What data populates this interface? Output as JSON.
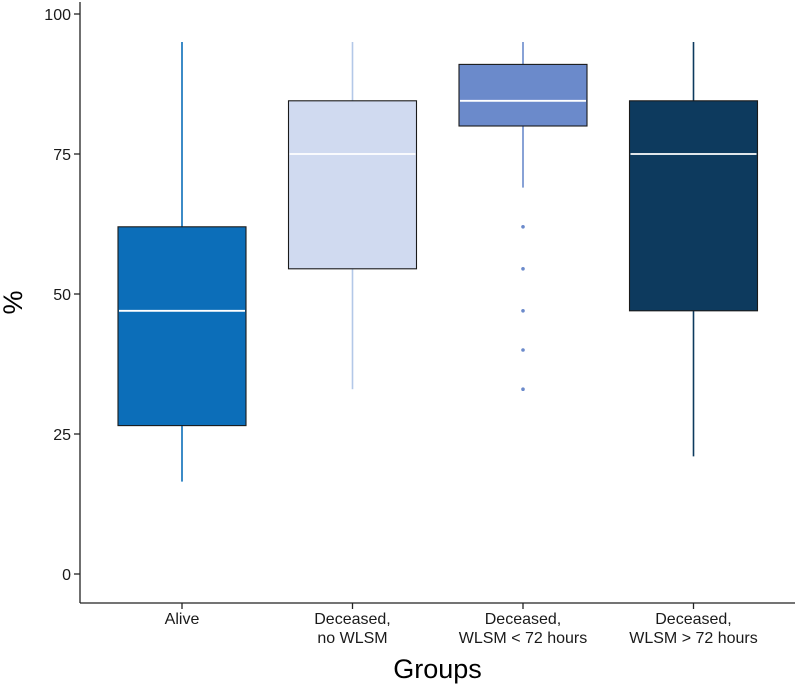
{
  "chart_data": {
    "type": "boxplot",
    "title": "",
    "xlabel": "Groups",
    "ylabel": "%",
    "ylim": [
      -5,
      102
    ],
    "yticks": [
      0,
      25,
      50,
      75,
      100
    ],
    "ytick_labels": [
      "0",
      "25",
      "50",
      "75",
      "100"
    ],
    "grid": false,
    "legend": "none",
    "categories": [
      [
        "Alive"
      ],
      [
        "Deceased,",
        "no WLSM"
      ],
      [
        "Deceased,",
        "WLSM < 72 hours"
      ],
      [
        "Deceased,",
        "WLSM > 72 hours"
      ]
    ],
    "boxes": [
      {
        "name": "Alive",
        "whisker_low": 16.5,
        "q1": 26.5,
        "median": 47,
        "q3": 62,
        "whisker_high": 95,
        "outliers": [],
        "fill": "#0c6eb9",
        "median_color": "#ffffff",
        "whisker_color": "#0c6eb9"
      },
      {
        "name": "Deceased, no WLSM",
        "whisker_low": 33,
        "q1": 54.5,
        "median": 75,
        "q3": 84.5,
        "whisker_high": 95,
        "outliers": [],
        "fill": "#d0daf0",
        "median_color": "#ffffff",
        "whisker_color": "#b3c8e8"
      },
      {
        "name": "Deceased, WLSM < 72 hours",
        "whisker_low": 69,
        "q1": 80,
        "median": 84.5,
        "q3": 91,
        "whisker_high": 95,
        "outliers": [
          62,
          54.5,
          47,
          40,
          33
        ],
        "fill": "#6b8acb",
        "median_color": "#ffffff",
        "whisker_color": "#6b8acb"
      },
      {
        "name": "Deceased, WLSM > 72 hours",
        "whisker_low": 21,
        "q1": 47,
        "median": 75,
        "q3": 84.5,
        "whisker_high": 95,
        "outliers": [],
        "fill": "#0d3a5e",
        "median_color": "#ffffff",
        "whisker_color": "#0d3a5e"
      }
    ]
  },
  "colors": {
    "axis": "#222222",
    "box_border": "#1a1a1a",
    "background": "#ffffff"
  }
}
